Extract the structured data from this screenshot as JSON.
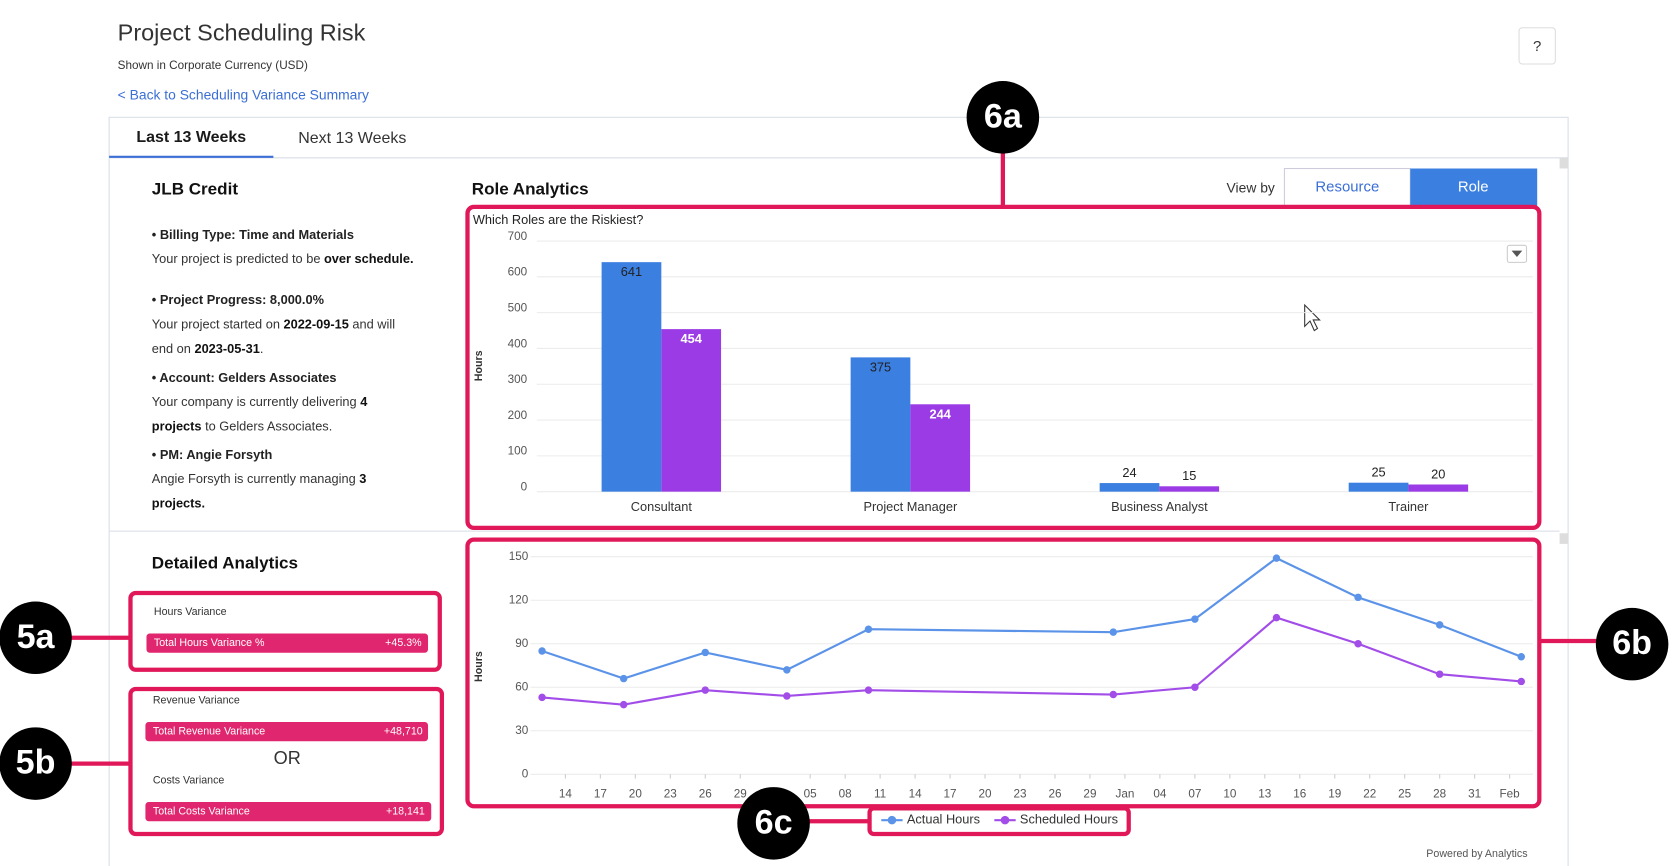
{
  "header": {
    "title": "Project Scheduling Risk",
    "subtitle": "Shown in Corporate Currency (USD)",
    "back_link": "< Back to Scheduling Variance Summary",
    "help": "?"
  },
  "tabs": [
    "Last 13 Weeks",
    "Next 13 Weeks"
  ],
  "project": {
    "name": "JLB Credit",
    "items": [
      {
        "heading": "• Billing Type: Time and Materials",
        "lines": [
          [
            "Your project is predicted to be ",
            {
              "text": "over schedule.",
              "bold": true
            }
          ]
        ]
      },
      {
        "heading": "• Project Progress: 8,000.0%",
        "lines": [
          [
            "Your project started on ",
            {
              "text": "2022-09-15",
              "bold": true
            },
            " and will"
          ],
          [
            "end on ",
            {
              "text": "2023-05-31",
              "bold": true
            },
            "."
          ]
        ]
      },
      {
        "heading": "• Account: Gelders Associates",
        "lines": [
          [
            "Your company is currently delivering ",
            {
              "text": "4",
              "bold": true
            }
          ],
          [
            {
              "text": "projects",
              "bold": true
            },
            " to Gelders Associates."
          ]
        ]
      },
      {
        "heading": "• PM: Angie Forsyth",
        "lines": [
          [
            "Angie Forsyth is currently managing ",
            {
              "text": "3",
              "bold": true
            }
          ],
          [
            {
              "text": "projects.",
              "bold": true
            }
          ]
        ]
      }
    ]
  },
  "detailed_analytics": {
    "title": "Detailed Analytics",
    "hours": {
      "heading": "Hours Variance",
      "label": "Total Hours Variance %",
      "value": "+45.3%"
    },
    "revenue": {
      "heading": "Revenue Variance",
      "label": "Total Revenue Variance",
      "value": "+48,710"
    },
    "or": "OR",
    "costs": {
      "heading": "Costs Variance",
      "label": "Total Costs Variance",
      "value": "+18,141"
    }
  },
  "role_analytics": {
    "title": "Role Analytics",
    "view_by": "View by",
    "options": [
      "Resource",
      "Role"
    ]
  },
  "annotations": {
    "a6a": "6a",
    "a6b": "6b",
    "a6c": "6c",
    "a5a": "5a",
    "a5b": "5b"
  },
  "footer": "Powered by Analytics",
  "chart_data": [
    {
      "type": "bar",
      "title": "Which Roles are the Riskiest?",
      "y_label": "Hours",
      "categories": [
        "Consultant",
        "Project Manager",
        "Business Analyst",
        "Trainer"
      ],
      "series": [
        {
          "color": "#3b7fe0",
          "values": [
            641,
            375,
            24,
            25
          ]
        },
        {
          "color": "#9b3be6",
          "values": [
            454,
            244,
            15,
            20
          ]
        }
      ],
      "ylim": [
        0,
        700
      ],
      "yticks": [
        0,
        100,
        200,
        300,
        400,
        500,
        600,
        700
      ],
      "grid": true
    },
    {
      "type": "line",
      "y_label": "Hours",
      "x": [
        -2,
        5,
        12,
        19,
        26,
        47,
        54,
        61,
        68,
        75,
        82
      ],
      "series": [
        {
          "name": "Actual Hours",
          "color": "#5b93e8",
          "values": [
            85,
            66,
            84,
            72,
            100,
            98,
            107,
            149,
            122,
            103,
            81
          ]
        },
        {
          "name": "Scheduled Hours",
          "color": "#a24de8",
          "values": [
            53,
            48,
            58,
            54,
            58,
            55,
            60,
            108,
            90,
            69,
            64
          ]
        }
      ],
      "xlim": [
        -3,
        83
      ],
      "xticks": [
        {
          "value": 0,
          "label": "14"
        },
        {
          "value": 3,
          "label": "17"
        },
        {
          "value": 6,
          "label": "20"
        },
        {
          "value": 9,
          "label": "23"
        },
        {
          "value": 12,
          "label": "26"
        },
        {
          "value": 15,
          "label": "29"
        },
        {
          "value": 21,
          "label": "05"
        },
        {
          "value": 24,
          "label": "08"
        },
        {
          "value": 27,
          "label": "11"
        },
        {
          "value": 30,
          "label": "14"
        },
        {
          "value": 33,
          "label": "17"
        },
        {
          "value": 36,
          "label": "20"
        },
        {
          "value": 39,
          "label": "23"
        },
        {
          "value": 42,
          "label": "26"
        },
        {
          "value": 45,
          "label": "29"
        },
        {
          "value": 48,
          "label": "Jan"
        },
        {
          "value": 51,
          "label": "04"
        },
        {
          "value": 54,
          "label": "07"
        },
        {
          "value": 57,
          "label": "10"
        },
        {
          "value": 60,
          "label": "13"
        },
        {
          "value": 63,
          "label": "16"
        },
        {
          "value": 66,
          "label": "19"
        },
        {
          "value": 69,
          "label": "22"
        },
        {
          "value": 72,
          "label": "25"
        },
        {
          "value": 75,
          "label": "28"
        },
        {
          "value": 78,
          "label": "31"
        },
        {
          "value": 81,
          "label": "Feb"
        }
      ],
      "ylim": [
        0,
        150
      ],
      "yticks": [
        0,
        30,
        60,
        90,
        120,
        150
      ],
      "grid": true,
      "legend": "bottom"
    }
  ]
}
